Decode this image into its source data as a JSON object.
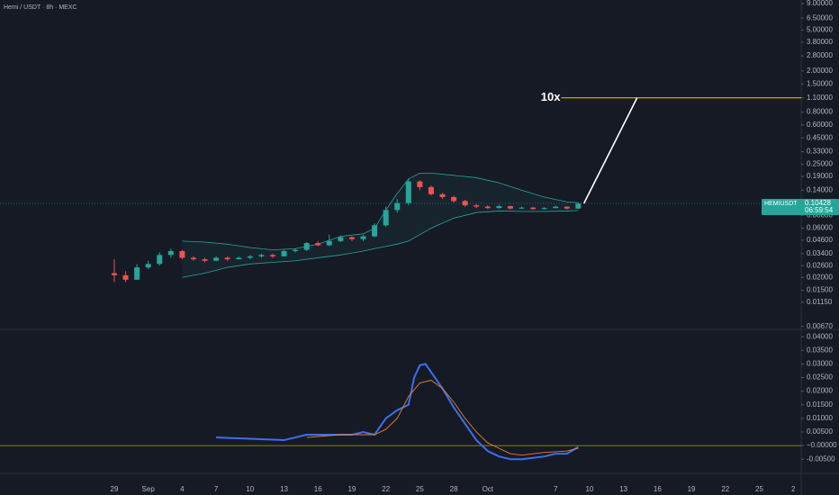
{
  "chart_data": [
    {
      "type": "candlestick",
      "title": "Hemi / USDT · 8h · MEXC",
      "log_scale": true,
      "xlim": [
        -10.1,
        60.7
      ],
      "xticks": [
        {
          "value": 0,
          "label": "29"
        },
        {
          "value": 3,
          "label": "Sep"
        },
        {
          "value": 6,
          "label": "4"
        },
        {
          "value": 9,
          "label": "7"
        },
        {
          "value": 12,
          "label": "10"
        },
        {
          "value": 15,
          "label": "13"
        },
        {
          "value": 18,
          "label": "16"
        },
        {
          "value": 21,
          "label": "19"
        },
        {
          "value": 24,
          "label": "22"
        },
        {
          "value": 27,
          "label": "25"
        },
        {
          "value": 30,
          "label": "28"
        },
        {
          "value": 33,
          "label": "Oct"
        },
        {
          "value": 39,
          "label": "7"
        },
        {
          "value": 42,
          "label": "10"
        },
        {
          "value": 45,
          "label": "13"
        },
        {
          "value": 48,
          "label": "16"
        },
        {
          "value": 51,
          "label": "19"
        },
        {
          "value": 54,
          "label": "22"
        },
        {
          "value": 57,
          "label": "25"
        },
        {
          "value": 60,
          "label": "2"
        }
      ],
      "ylim": [
        0.0064,
        9.75
      ],
      "yticks": [
        {
          "value": 9,
          "label": "9.00000"
        },
        {
          "value": 6.5,
          "label": "6.50000"
        },
        {
          "value": 5,
          "label": "5.00000"
        },
        {
          "value": 3.8,
          "label": "3.80000"
        },
        {
          "value": 2.8,
          "label": "2.80000"
        },
        {
          "value": 2,
          "label": "2.00000"
        },
        {
          "value": 1.5,
          "label": "1.50000"
        },
        {
          "value": 1.1,
          "label": "1.10000"
        },
        {
          "value": 0.8,
          "label": "0.80000"
        },
        {
          "value": 0.6,
          "label": "0.60000"
        },
        {
          "value": 0.45,
          "label": "0.45000"
        },
        {
          "value": 0.33,
          "label": "0.33000"
        },
        {
          "value": 0.25,
          "label": "0.25000"
        },
        {
          "value": 0.19,
          "label": "0.19000"
        },
        {
          "value": 0.14,
          "label": "0.14000"
        },
        {
          "value": 0.08,
          "label": "0.08000"
        },
        {
          "value": 0.06,
          "label": "0.06000"
        },
        {
          "value": 0.046,
          "label": "0.04600"
        },
        {
          "value": 0.034,
          "label": "0.03400"
        },
        {
          "value": 0.026,
          "label": "0.02600"
        },
        {
          "value": 0.02,
          "label": "0.02000"
        },
        {
          "value": 0.015,
          "label": "0.01500"
        },
        {
          "value": 0.0115,
          "label": "0.01150"
        },
        {
          "value": 0.0067,
          "label": "0.00670"
        }
      ],
      "up_color": "#26a69a",
      "down_color": "#ef5350",
      "x": [
        0,
        1,
        2,
        3,
        4,
        5,
        6,
        7,
        8,
        9,
        10,
        11,
        12,
        13,
        14,
        15,
        16,
        17,
        18,
        19,
        20,
        21,
        22,
        23,
        24,
        25,
        26,
        27,
        28,
        29,
        30,
        31,
        32,
        33,
        34,
        35,
        36,
        37,
        38,
        39,
        40,
        41
      ],
      "open": [
        0.022,
        0.021,
        0.019,
        0.025,
        0.027,
        0.033,
        0.036,
        0.031,
        0.03,
        0.029,
        0.031,
        0.03,
        0.031,
        0.032,
        0.033,
        0.032,
        0.036,
        0.037,
        0.043,
        0.041,
        0.045,
        0.049,
        0.047,
        0.05,
        0.064,
        0.09,
        0.105,
        0.17,
        0.15,
        0.128,
        0.12,
        0.11,
        0.1,
        0.097,
        0.094,
        0.098,
        0.093,
        0.095,
        0.092,
        0.094,
        0.097,
        0.093
      ],
      "high": [
        0.03,
        0.023,
        0.027,
        0.029,
        0.035,
        0.038,
        0.037,
        0.032,
        0.031,
        0.032,
        0.032,
        0.032,
        0.033,
        0.034,
        0.034,
        0.037,
        0.038,
        0.044,
        0.045,
        0.052,
        0.051,
        0.05,
        0.052,
        0.067,
        0.097,
        0.115,
        0.18,
        0.175,
        0.155,
        0.132,
        0.124,
        0.113,
        0.103,
        0.1,
        0.101,
        0.099,
        0.097,
        0.096,
        0.096,
        0.099,
        0.098,
        0.106
      ],
      "low": [
        0.018,
        0.018,
        0.019,
        0.024,
        0.026,
        0.031,
        0.03,
        0.029,
        0.028,
        0.029,
        0.029,
        0.03,
        0.03,
        0.031,
        0.031,
        0.032,
        0.035,
        0.036,
        0.04,
        0.04,
        0.044,
        0.045,
        0.045,
        0.049,
        0.062,
        0.085,
        0.1,
        0.14,
        0.125,
        0.115,
        0.106,
        0.097,
        0.094,
        0.092,
        0.093,
        0.091,
        0.092,
        0.09,
        0.091,
        0.093,
        0.091,
        0.092
      ],
      "close": [
        0.021,
        0.019,
        0.025,
        0.027,
        0.033,
        0.036,
        0.031,
        0.03,
        0.029,
        0.031,
        0.03,
        0.031,
        0.032,
        0.033,
        0.032,
        0.036,
        0.037,
        0.043,
        0.041,
        0.045,
        0.049,
        0.047,
        0.05,
        0.064,
        0.09,
        0.105,
        0.17,
        0.15,
        0.128,
        0.12,
        0.11,
        0.1,
        0.097,
        0.094,
        0.098,
        0.093,
        0.095,
        0.092,
        0.094,
        0.097,
        0.093,
        0.104
      ],
      "bands": {
        "color": "#26a69a",
        "x": [
          6,
          8,
          10,
          12,
          14,
          16,
          18,
          20,
          22,
          23,
          24,
          25,
          26,
          27,
          28,
          30,
          32,
          34,
          36,
          38,
          40,
          41
        ],
        "upper": [
          0.045,
          0.044,
          0.042,
          0.039,
          0.037,
          0.038,
          0.042,
          0.05,
          0.053,
          0.06,
          0.09,
          0.13,
          0.18,
          0.205,
          0.205,
          0.195,
          0.185,
          0.165,
          0.14,
          0.12,
          0.108,
          0.106
        ],
        "lower": [
          0.02,
          0.022,
          0.025,
          0.027,
          0.028,
          0.029,
          0.031,
          0.033,
          0.036,
          0.038,
          0.04,
          0.042,
          0.045,
          0.052,
          0.06,
          0.075,
          0.085,
          0.088,
          0.087,
          0.087,
          0.088,
          0.089
        ]
      },
      "price_label": {
        "symbol": "HEMIUSDT",
        "price": 0.10428,
        "countdown": "06:59:54"
      },
      "projection": {
        "x": [
          41.5,
          46.2
        ],
        "values": [
          0.10428,
          1.1
        ]
      },
      "target": {
        "label": "10x",
        "value": 1.1,
        "x_start": 39.5,
        "color": "#f0a81c"
      }
    },
    {
      "type": "line",
      "xlim": [
        -10.1,
        60.7
      ],
      "ylim": [
        -0.0089,
        0.0427
      ],
      "yticks": [
        {
          "value": 0.04,
          "label": "0.04000"
        },
        {
          "value": 0.035,
          "label": "0.03500"
        },
        {
          "value": 0.03,
          "label": "0.03000"
        },
        {
          "value": 0.025,
          "label": "0.02500"
        },
        {
          "value": 0.02,
          "label": "0.02000"
        },
        {
          "value": 0.015,
          "label": "0.01500"
        },
        {
          "value": 0.01,
          "label": "0.01000"
        },
        {
          "value": 0.005,
          "label": "0.00500"
        },
        {
          "value": 0,
          "label": "−0.00000"
        },
        {
          "value": -0.005,
          "label": "-0.00500"
        }
      ],
      "zero_line_color": "#a3a11d",
      "series": [
        {
          "color": "#3d6ef0",
          "x": [
            9,
            12,
            15,
            17,
            19,
            21,
            22,
            23,
            24,
            25,
            26,
            26.5,
            27,
            27.5,
            28,
            29,
            30,
            31,
            32,
            33,
            34,
            35,
            36,
            37,
            38,
            39,
            40,
            41
          ],
          "values": [
            0.003,
            0.0025,
            0.002,
            0.004,
            0.004,
            0.004,
            0.005,
            0.004,
            0.01,
            0.013,
            0.015,
            0.025,
            0.0295,
            0.03,
            0.027,
            0.021,
            0.014,
            0.008,
            0.002,
            -0.002,
            -0.004,
            -0.005,
            -0.005,
            -0.0045,
            -0.004,
            -0.003,
            -0.003,
            -0.0005
          ]
        },
        {
          "color": "#e8802a",
          "x": [
            17,
            20,
            22,
            23,
            24,
            25,
            26,
            27,
            28,
            29,
            30,
            31,
            32,
            33,
            34,
            35,
            36,
            37,
            38,
            40,
            41
          ],
          "values": [
            0.003,
            0.004,
            0.004,
            0.004,
            0.006,
            0.01,
            0.018,
            0.023,
            0.024,
            0.021,
            0.016,
            0.01,
            0.005,
            0.001,
            -0.001,
            -0.003,
            -0.0035,
            -0.003,
            -0.0025,
            -0.002,
            -0.001
          ]
        }
      ]
    }
  ]
}
